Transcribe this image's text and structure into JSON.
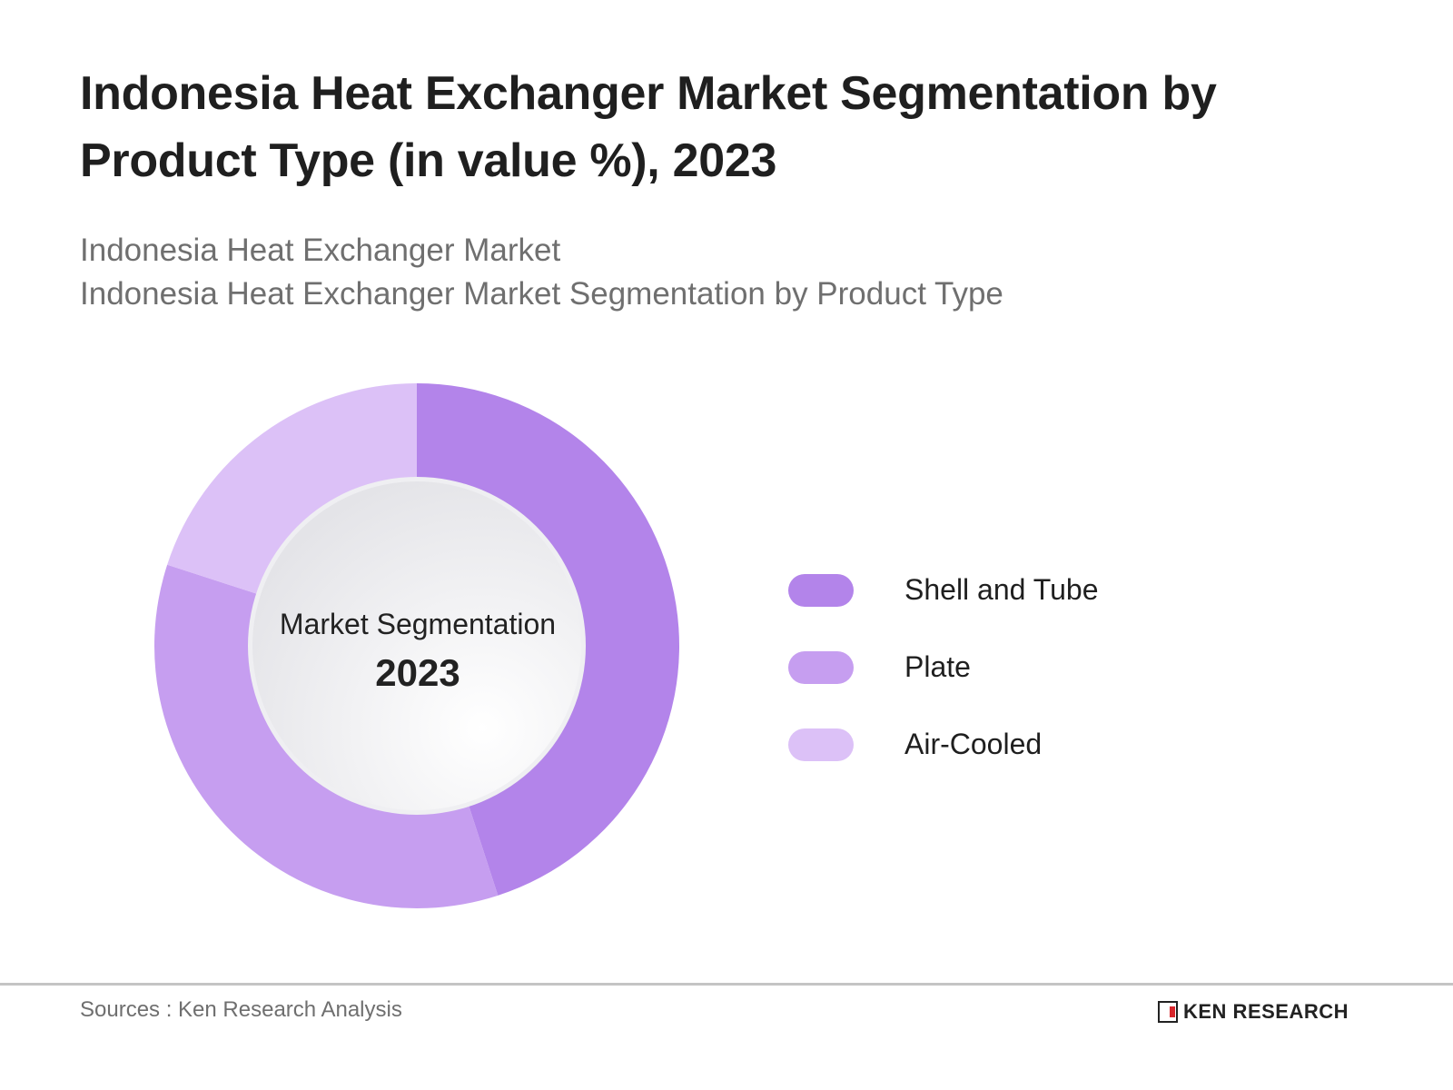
{
  "title": "Indonesia Heat Exchanger Market Segmentation by Product Type (in value %), 2023",
  "subtitle": {
    "line1": "Indonesia Heat Exchanger Market",
    "line2": "Indonesia Heat Exchanger Market Segmentation by Product Type"
  },
  "center": {
    "label": "Market Segmentation",
    "year": "2023"
  },
  "legend": [
    {
      "label": "Shell and Tube",
      "color": "#b384ea"
    },
    {
      "label": "Plate",
      "color": "#c69ef0"
    },
    {
      "label": "Air-Cooled",
      "color": "#dcc1f7"
    }
  ],
  "footer": {
    "source": "Sources : Ken Research Analysis",
    "logo": "KEN RESEARCH"
  },
  "chart_data": {
    "type": "pie",
    "subtype": "donut",
    "title": "Indonesia Heat Exchanger Market Segmentation by Product Type (in value %), 2023",
    "categories": [
      "Shell and Tube",
      "Plate",
      "Air-Cooled"
    ],
    "values": [
      45,
      35,
      20
    ],
    "colors": [
      "#b384ea",
      "#c69ef0",
      "#dcc1f7"
    ],
    "center_text": [
      "Market Segmentation",
      "2023"
    ],
    "legend_position": "right",
    "start_angle": "12 o'clock, clockwise"
  }
}
